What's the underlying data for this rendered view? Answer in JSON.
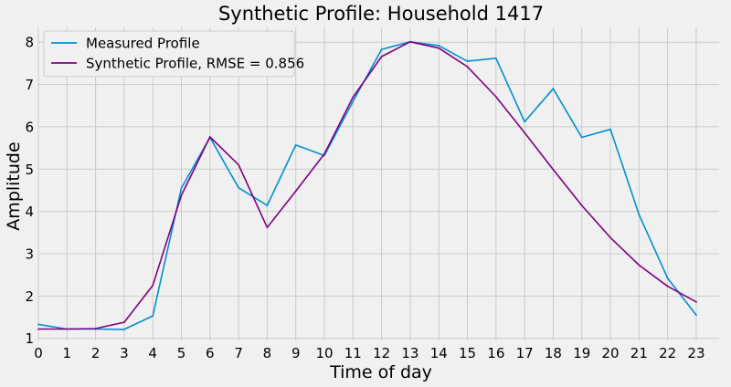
{
  "chart_data": {
    "type": "line",
    "title": "Synthetic Profile: Household 1417",
    "xlabel": "Time of day",
    "ylabel": "Amplitude",
    "x": [
      0,
      1,
      2,
      3,
      4,
      5,
      6,
      7,
      8,
      9,
      10,
      11,
      12,
      13,
      14,
      15,
      16,
      17,
      18,
      19,
      20,
      21,
      22,
      23
    ],
    "xlim": [
      0,
      23.8
    ],
    "ylim": [
      0.95,
      8.35
    ],
    "yticks": [
      1,
      2,
      3,
      4,
      5,
      6,
      7,
      8
    ],
    "grid": true,
    "legend_position": "top-left",
    "series": [
      {
        "name": "Measured Profile",
        "color": "#008fd5",
        "values": [
          1.33,
          1.22,
          1.22,
          1.21,
          1.53,
          4.55,
          5.75,
          4.56,
          4.14,
          5.57,
          5.32,
          6.6,
          7.83,
          8.01,
          7.92,
          7.55,
          7.62,
          6.12,
          6.9,
          5.75,
          5.94,
          3.92,
          2.42,
          1.55
        ]
      },
      {
        "name": "Synthetic Profile, RMSE = 0.856",
        "color": "#800080",
        "values": [
          1.22,
          1.22,
          1.23,
          1.38,
          2.25,
          4.38,
          5.76,
          5.1,
          3.62,
          4.48,
          5.36,
          6.7,
          7.66,
          8.01,
          7.86,
          7.42,
          6.71,
          5.86,
          4.99,
          4.14,
          3.38,
          2.73,
          2.23,
          1.86
        ]
      }
    ]
  }
}
